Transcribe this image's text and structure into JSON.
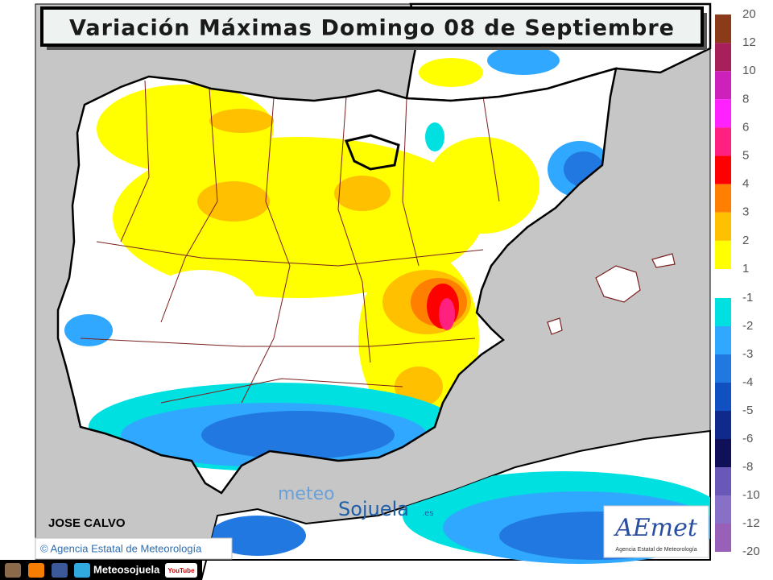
{
  "title": "Variación Máximas Domingo 08 de Septiembre",
  "legend": {
    "upper": {
      "labels": [
        20,
        12,
        10,
        8,
        6,
        5,
        4,
        3,
        2,
        1
      ],
      "colors": [
        "#8b3a1a",
        "#a8205a",
        "#cc22bb",
        "#ff22ff",
        "#ff2080",
        "#ff0000",
        "#ff7f00",
        "#ffc000",
        "#ffff00"
      ]
    },
    "lower": {
      "labels": [
        -1,
        -2,
        -3,
        -4,
        -5,
        -6,
        -8,
        -10,
        -12,
        -20
      ],
      "colors": [
        "#00e0e0",
        "#30a8ff",
        "#2078e0",
        "#1050c0",
        "#102a8c",
        "#101058",
        "#6a58b8",
        "#8870c8",
        "#9860b8"
      ]
    }
  },
  "author": "JOSE CALVO",
  "credit": "© Agencia Estatal de Meteorología",
  "watermark": {
    "meteo": "meteo",
    "sojuela": "Sojuela",
    "domain": ".es"
  },
  "logo": {
    "name": "AEmet",
    "subtitle": "Agencia Estatal de Meteorología"
  },
  "footer": {
    "channel": "Meteosojuela",
    "video": "YouTube"
  }
}
